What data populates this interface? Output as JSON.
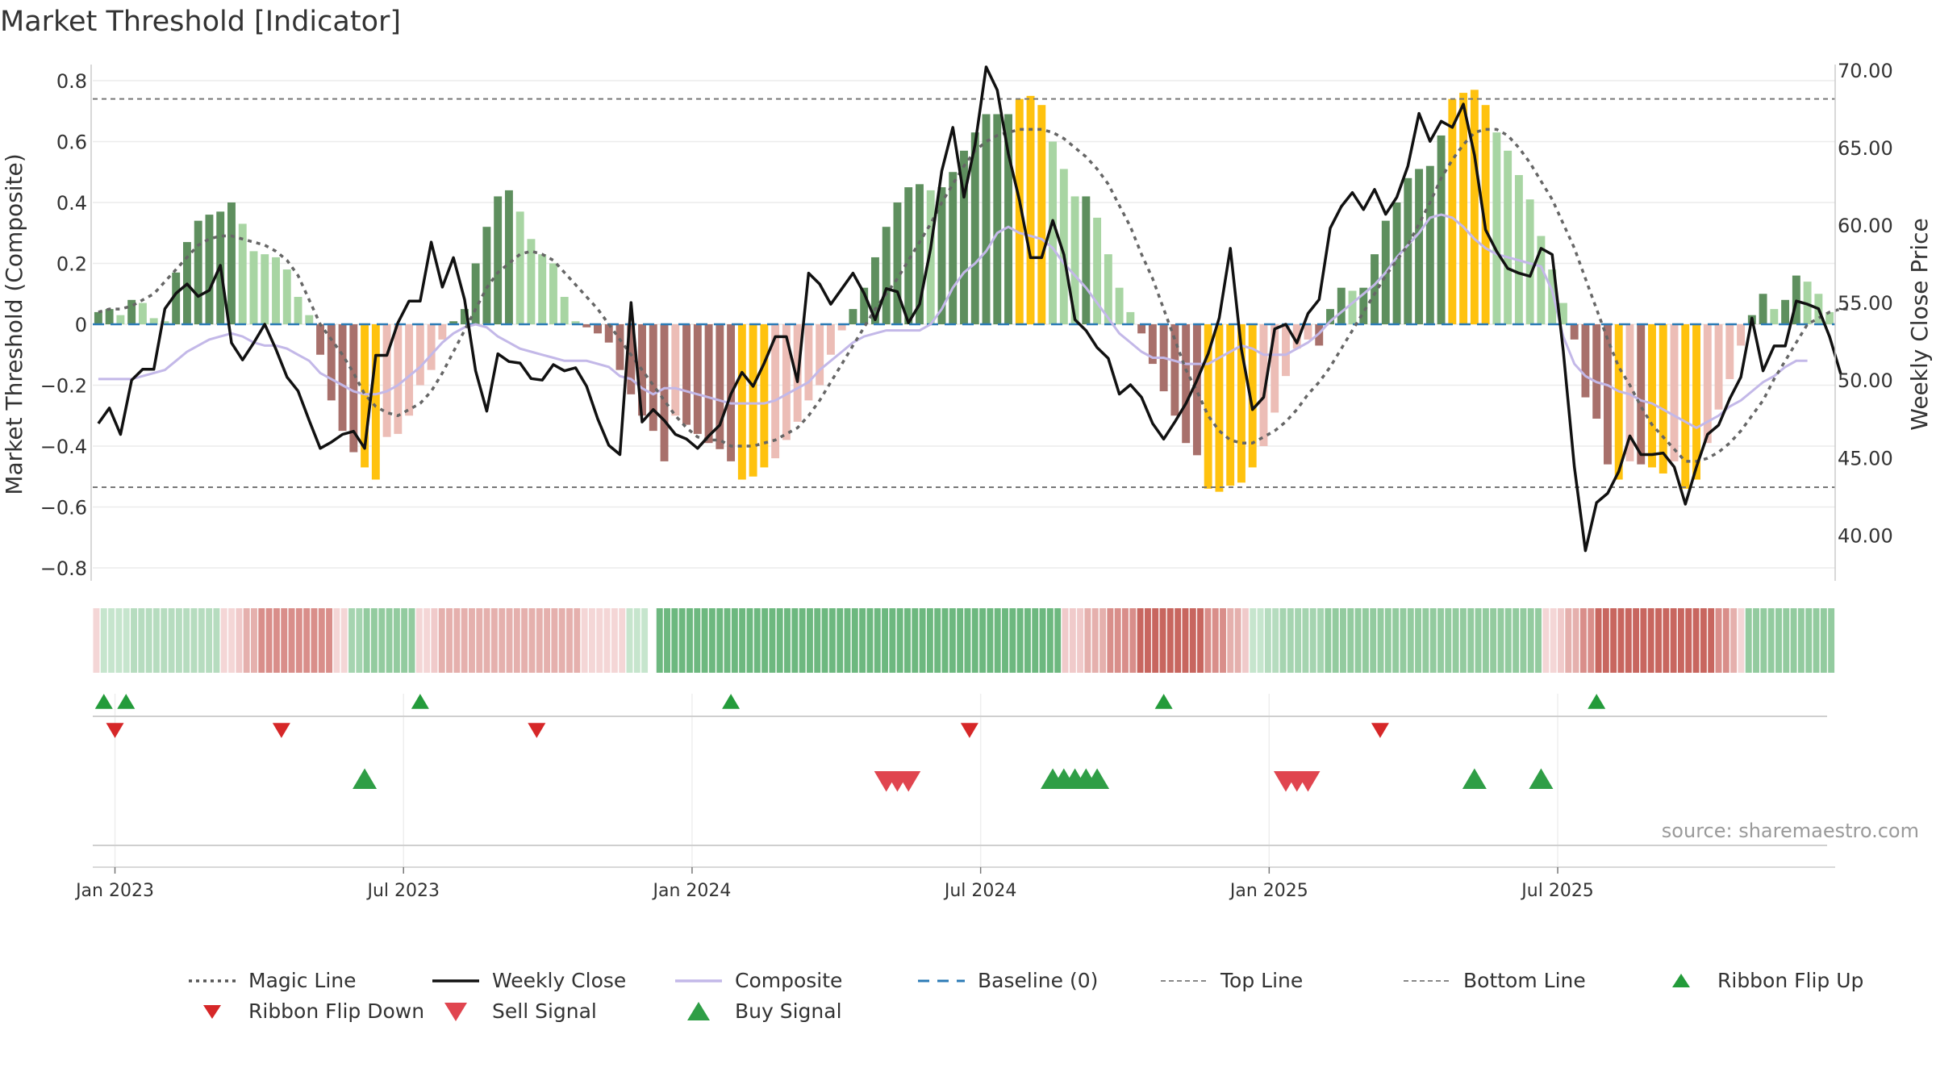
{
  "chart_data": {
    "type": "bar",
    "title": "Market Threshold [Indicator]",
    "ylabel": "Market Threshold (Composite)",
    "y2label": "Weekly Close Price",
    "ylim": [
      -0.85,
      0.85
    ],
    "y2lim": [
      36.2,
      71.0
    ],
    "y_ticks": [
      0.8,
      0.6,
      0.4,
      0.2,
      0,
      -0.2,
      -0.4,
      -0.6,
      -0.8
    ],
    "y_tick_labels": [
      "0.8",
      "0.6",
      "0.4",
      "0.2",
      "0",
      "−0.2",
      "−0.4",
      "−0.6",
      "−0.8"
    ],
    "y2_ticks": [
      70,
      65,
      60,
      55,
      50,
      45,
      40
    ],
    "y2_tick_labels": [
      "70.00",
      "65.00",
      "60.00",
      "55.00",
      "50.00",
      "45.00",
      "40.00"
    ],
    "x_ticks": [
      {
        "label": "Jan 2023",
        "week": 1.5
      },
      {
        "label": "Jul 2023",
        "week": 27.5
      },
      {
        "label": "Jan 2024",
        "week": 53.5
      },
      {
        "label": "Jul 2024",
        "week": 79.5
      },
      {
        "label": "Jan 2025",
        "week": 105.5
      },
      {
        "label": "Jul 2025",
        "week": 131.5
      }
    ],
    "top_line": 0.74,
    "bottom_line": -0.535,
    "baseline": 0,
    "composite_bars": [
      0.04,
      0.05,
      0.03,
      0.08,
      0.07,
      0.02,
      0.01,
      0.17,
      0.27,
      0.34,
      0.36,
      0.37,
      0.4,
      0.33,
      0.24,
      0.23,
      0.22,
      0.18,
      0.09,
      0.03,
      -0.1,
      -0.25,
      -0.35,
      -0.42,
      -0.47,
      -0.51,
      -0.37,
      -0.36,
      -0.3,
      -0.2,
      -0.15,
      -0.05,
      0.01,
      0.05,
      0.2,
      0.32,
      0.42,
      0.44,
      0.37,
      0.28,
      0.23,
      0.2,
      0.09,
      0.01,
      -0.01,
      -0.03,
      -0.06,
      -0.15,
      -0.23,
      -0.3,
      -0.35,
      -0.45,
      -0.3,
      -0.33,
      -0.36,
      -0.39,
      -0.41,
      -0.45,
      -0.51,
      -0.5,
      -0.47,
      -0.44,
      -0.38,
      -0.32,
      -0.25,
      -0.2,
      -0.1,
      -0.02,
      0.05,
      0.12,
      0.22,
      0.32,
      0.4,
      0.45,
      0.46,
      0.44,
      0.45,
      0.5,
      0.57,
      0.63,
      0.69,
      0.69,
      0.69,
      0.74,
      0.75,
      0.72,
      0.6,
      0.51,
      0.42,
      0.42,
      0.35,
      0.23,
      0.12,
      0.04,
      -0.03,
      -0.13,
      -0.22,
      -0.3,
      -0.39,
      -0.43,
      -0.54,
      -0.55,
      -0.53,
      -0.52,
      -0.47,
      -0.4,
      -0.29,
      -0.17,
      -0.08,
      -0.05,
      -0.07,
      0.05,
      0.12,
      0.11,
      0.12,
      0.23,
      0.34,
      0.4,
      0.48,
      0.51,
      0.52,
      0.62,
      0.74,
      0.76,
      0.77,
      0.72,
      0.63,
      0.57,
      0.49,
      0.41,
      0.29,
      0.18,
      0.07,
      -0.05,
      -0.24,
      -0.31,
      -0.46,
      -0.51,
      -0.45,
      -0.46,
      -0.47,
      -0.49,
      -0.45,
      -0.54,
      -0.51,
      -0.39,
      -0.28,
      -0.18,
      -0.07,
      0.03,
      0.1,
      0.05,
      0.08,
      0.16,
      0.14,
      0.1,
      0.04
    ],
    "weekly_close": [
      47.2,
      48.2,
      46.5,
      50.0,
      50.7,
      50.7,
      54.6,
      55.6,
      56.2,
      55.4,
      55.8,
      57.4,
      52.4,
      51.3,
      52.4,
      53.6,
      52.0,
      50.2,
      49.3,
      47.4,
      45.6,
      46.0,
      46.5,
      46.7,
      45.6,
      51.6,
      51.6,
      53.7,
      55.1,
      55.1,
      58.9,
      56.0,
      57.9,
      55.2,
      50.6,
      48.0,
      51.7,
      51.2,
      51.1,
      50.1,
      50.0,
      51.0,
      50.6,
      50.8,
      49.6,
      47.5,
      45.8,
      45.2,
      55.0,
      47.3,
      48.1,
      47.4,
      46.5,
      46.2,
      45.6,
      46.4,
      47.1,
      49.1,
      50.5,
      49.6,
      51.1,
      52.8,
      52.8,
      49.9,
      56.9,
      56.2,
      54.9,
      55.9,
      56.9,
      55.6,
      53.9,
      55.9,
      55.7,
      53.7,
      54.9,
      58.5,
      63.5,
      66.3,
      61.8,
      65.2,
      70.2,
      68.7,
      64.6,
      61.6,
      57.9,
      57.9,
      60.3,
      58.1,
      53.9,
      53.2,
      52.1,
      51.4,
      49.1,
      49.7,
      48.9,
      47.2,
      46.2,
      47.3,
      48.5,
      50.0,
      51.7,
      54.0,
      58.5,
      52.0,
      48.1,
      48.9,
      53.3,
      53.6,
      52.4,
      54.3,
      55.2,
      59.8,
      61.2,
      62.1,
      61.0,
      62.3,
      60.7,
      61.8,
      63.8,
      67.2,
      65.4,
      66.7,
      66.3,
      67.8,
      64.5,
      59.7,
      58.3,
      57.2,
      56.9,
      56.7,
      58.5,
      58.1,
      51.9,
      44.4,
      39.0,
      42.1,
      42.7,
      44.1,
      46.4,
      45.2,
      45.2,
      45.3,
      44.4,
      42.0,
      44.4,
      46.5,
      47.1,
      48.8,
      50.2,
      54.0,
      50.6,
      52.2,
      52.2,
      55.1,
      54.9,
      54.6,
      52.8,
      50.4
    ],
    "magic_line": [
      0.04,
      0.05,
      0.05,
      0.06,
      0.08,
      0.1,
      0.14,
      0.18,
      0.22,
      0.26,
      0.28,
      0.29,
      0.29,
      0.28,
      0.27,
      0.26,
      0.24,
      0.21,
      0.16,
      0.08,
      0.0,
      -0.05,
      -0.1,
      -0.16,
      -0.23,
      -0.27,
      -0.29,
      -0.3,
      -0.28,
      -0.26,
      -0.22,
      -0.16,
      -0.09,
      -0.02,
      0.05,
      0.12,
      0.17,
      0.2,
      0.23,
      0.24,
      0.23,
      0.21,
      0.17,
      0.13,
      0.09,
      0.05,
      0.0,
      -0.05,
      -0.1,
      -0.15,
      -0.2,
      -0.25,
      -0.3,
      -0.34,
      -0.37,
      -0.38,
      -0.38,
      -0.4,
      -0.4,
      -0.4,
      -0.39,
      -0.38,
      -0.36,
      -0.34,
      -0.3,
      -0.25,
      -0.19,
      -0.13,
      -0.07,
      -0.01,
      0.05,
      0.1,
      0.15,
      0.21,
      0.27,
      0.33,
      0.4,
      0.46,
      0.52,
      0.57,
      0.6,
      0.62,
      0.63,
      0.64,
      0.64,
      0.64,
      0.63,
      0.61,
      0.58,
      0.55,
      0.51,
      0.46,
      0.39,
      0.32,
      0.23,
      0.15,
      0.05,
      -0.05,
      -0.15,
      -0.22,
      -0.3,
      -0.35,
      -0.38,
      -0.39,
      -0.39,
      -0.37,
      -0.35,
      -0.32,
      -0.28,
      -0.23,
      -0.19,
      -0.14,
      -0.08,
      -0.02,
      0.04,
      0.1,
      0.16,
      0.21,
      0.26,
      0.33,
      0.4,
      0.48,
      0.54,
      0.59,
      0.63,
      0.64,
      0.64,
      0.62,
      0.58,
      0.53,
      0.47,
      0.41,
      0.33,
      0.25,
      0.15,
      0.05,
      -0.05,
      -0.14,
      -0.2,
      -0.27,
      -0.33,
      -0.37,
      -0.41,
      -0.45,
      -0.45,
      -0.44,
      -0.42,
      -0.39,
      -0.35,
      -0.3,
      -0.25,
      -0.18,
      -0.12,
      -0.06,
      0.0,
      0.02,
      0.04,
      0.05,
      0.05
    ],
    "composite_line": [
      -0.18,
      -0.18,
      -0.18,
      -0.18,
      -0.17,
      -0.16,
      -0.15,
      -0.12,
      -0.09,
      -0.07,
      -0.05,
      -0.04,
      -0.03,
      -0.04,
      -0.06,
      -0.07,
      -0.07,
      -0.08,
      -0.1,
      -0.12,
      -0.16,
      -0.18,
      -0.2,
      -0.22,
      -0.23,
      -0.23,
      -0.22,
      -0.2,
      -0.17,
      -0.14,
      -0.1,
      -0.06,
      -0.03,
      -0.01,
      0.0,
      -0.01,
      -0.04,
      -0.06,
      -0.08,
      -0.09,
      -0.1,
      -0.11,
      -0.12,
      -0.12,
      -0.12,
      -0.13,
      -0.14,
      -0.17,
      -0.18,
      -0.21,
      -0.23,
      -0.21,
      -0.21,
      -0.22,
      -0.23,
      -0.24,
      -0.25,
      -0.26,
      -0.26,
      -0.26,
      -0.26,
      -0.25,
      -0.23,
      -0.21,
      -0.19,
      -0.15,
      -0.12,
      -0.09,
      -0.06,
      -0.04,
      -0.03,
      -0.02,
      -0.02,
      -0.02,
      -0.02,
      0.0,
      0.05,
      0.12,
      0.17,
      0.2,
      0.24,
      0.3,
      0.32,
      0.3,
      0.29,
      0.28,
      0.25,
      0.2,
      0.16,
      0.12,
      0.07,
      0.02,
      -0.03,
      -0.06,
      -0.09,
      -0.11,
      -0.11,
      -0.12,
      -0.13,
      -0.13,
      -0.13,
      -0.11,
      -0.09,
      -0.07,
      -0.08,
      -0.1,
      -0.1,
      -0.1,
      -0.08,
      -0.06,
      -0.03,
      0.01,
      0.04,
      0.07,
      0.1,
      0.13,
      0.17,
      0.22,
      0.26,
      0.3,
      0.35,
      0.36,
      0.35,
      0.32,
      0.28,
      0.25,
      0.23,
      0.22,
      0.21,
      0.2,
      0.19,
      0.11,
      -0.04,
      -0.13,
      -0.17,
      -0.19,
      -0.2,
      -0.22,
      -0.23,
      -0.25,
      -0.26,
      -0.28,
      -0.3,
      -0.32,
      -0.34,
      -0.32,
      -0.3,
      -0.27,
      -0.25,
      -0.22,
      -0.19,
      -0.17,
      -0.14,
      -0.12,
      -0.12
    ],
    "ribbon_colors": [
      "#f4d6d6",
      "#c6e5cd",
      "#c6e5cd",
      "#c6e5cd",
      "#c6e5cd",
      "#b6dcbf",
      "#b6dcbf",
      "#b6dcbf",
      "#b6dcbf",
      "#b6dcbf",
      "#b6dcbf",
      "#b6dcbf",
      "#b6dcbf",
      "#b6dcbf",
      "#b6dcbf",
      "#b6dcbf",
      "#b6dcbf",
      "#f4d6d6",
      "#f4d6d6",
      "#f0caca",
      "#e5b0ad",
      "#e5b0ad",
      "#d98e8a",
      "#d98e8a",
      "#d98e8a",
      "#d98e8a",
      "#d98e8a",
      "#d98e8a",
      "#d98e8a",
      "#d98e8a",
      "#d98e8a",
      "#d98e8a",
      "#f4d6d6",
      "#f4d6d6",
      "#a5d4b0",
      "#a5d4b0",
      "#93cb9f",
      "#93cb9f",
      "#93cb9f",
      "#93cb9f",
      "#93cb9f",
      "#93cb9f",
      "#93cb9f",
      "#f4d6d6",
      "#f4d6d6",
      "#f0caca",
      "#e5b0ad",
      "#e5b0ad",
      "#e5b0ad",
      "#e5b0ad",
      "#e5b0ad",
      "#e5b0ad",
      "#e5b0ad",
      "#e5b0ad",
      "#e5b0ad",
      "#e5b0ad",
      "#e5b0ad",
      "#e5b0ad",
      "#e5b0ad",
      "#e5b0ad",
      "#e5b0ad",
      "#e5b0ad",
      "#e5b0ad",
      "#e5b0ad",
      "#e5b0ad",
      "#f4d6d6",
      "#f4d6d6",
      "#f4d6d6",
      "#f4d6d6",
      "#f4d6d6",
      "#f4d6d6",
      "#c6e5cd",
      "#c6e5cd",
      "#c6e5cd",
      "#ffffff",
      "#6db87f",
      "#6db87f",
      "#6db87f",
      "#6db87f",
      "#6db87f",
      "#6db87f",
      "#6db87f",
      "#6db87f",
      "#6db87f",
      "#6db87f",
      "#6db87f",
      "#6db87f",
      "#6db87f",
      "#6db87f",
      "#6db87f",
      "#6db87f",
      "#6db87f",
      "#6db87f",
      "#6db87f",
      "#6db87f",
      "#6db87f",
      "#6db87f",
      "#6db87f",
      "#6db87f",
      "#6db87f",
      "#6db87f",
      "#6db87f",
      "#6db87f",
      "#6db87f",
      "#6db87f",
      "#6db87f",
      "#6db87f",
      "#6db87f",
      "#6db87f",
      "#6db87f",
      "#6db87f",
      "#6db87f",
      "#6db87f",
      "#6db87f",
      "#6db87f",
      "#6db87f",
      "#6db87f",
      "#6db87f",
      "#6db87f",
      "#6db87f",
      "#6db87f",
      "#6db87f",
      "#6db87f",
      "#6db87f",
      "#6db87f",
      "#6db87f",
      "#6db87f",
      "#6db87f",
      "#6db87f",
      "#f0caca",
      "#f0caca",
      "#f0caca",
      "#e5b0ad",
      "#e5b0ad",
      "#e5b0ad",
      "#d98e8a",
      "#d98e8a",
      "#d98e8a",
      "#d98e8a",
      "#c8665f",
      "#c8665f",
      "#c8665f",
      "#c8665f",
      "#c8665f",
      "#c8665f",
      "#c8665f",
      "#c8665f",
      "#c8665f",
      "#d98e8a",
      "#d98e8a",
      "#d98e8a",
      "#e5b0ad",
      "#e5b0ad",
      "#f0caca",
      "#c6e5cd",
      "#c6e5cd",
      "#b6dcbf",
      "#b6dcbf",
      "#a5d4b0",
      "#a5d4b0",
      "#a5d4b0",
      "#a5d4b0",
      "#a5d4b0",
      "#a5d4b0",
      "#93cb9f",
      "#93cb9f",
      "#93cb9f",
      "#93cb9f",
      "#93cb9f",
      "#93cb9f",
      "#93cb9f",
      "#93cb9f",
      "#93cb9f",
      "#93cb9f",
      "#93cb9f",
      "#93cb9f",
      "#93cb9f",
      "#93cb9f",
      "#93cb9f",
      "#93cb9f",
      "#93cb9f",
      "#93cb9f",
      "#93cb9f",
      "#93cb9f",
      "#93cb9f",
      "#93cb9f",
      "#93cb9f",
      "#93cb9f",
      "#93cb9f",
      "#93cb9f",
      "#93cb9f",
      "#93cb9f",
      "#93cb9f",
      "#f4d6d6",
      "#f4d6d6",
      "#f0caca",
      "#e5b0ad",
      "#e5b0ad",
      "#d98e8a",
      "#d98e8a",
      "#c8665f",
      "#c8665f",
      "#c8665f",
      "#c8665f",
      "#c8665f",
      "#c8665f",
      "#c8665f",
      "#c8665f",
      "#c8665f",
      "#c8665f",
      "#c8665f",
      "#c8665f",
      "#c8665f",
      "#c8665f",
      "#c8665f",
      "#c8665f",
      "#d98e8a",
      "#d98e8a",
      "#e5b0ad",
      "#f4d6d6",
      "#93cb9f",
      "#93cb9f",
      "#93cb9f",
      "#93cb9f",
      "#93cb9f",
      "#93cb9f",
      "#93cb9f",
      "#93cb9f",
      "#93cb9f",
      "#93cb9f",
      "#93cb9f",
      "#93cb9f"
    ],
    "ribbon_flip_up_weeks": [
      0.5,
      2.5,
      29,
      57,
      96,
      135
    ],
    "ribbon_flip_down_weeks": [
      1.5,
      16.5,
      39.5,
      78.5,
      115.5
    ],
    "buy_signal_weeks": [
      24,
      86,
      87,
      88,
      89,
      90,
      124,
      130
    ],
    "sell_signal_weeks": [
      71,
      72,
      73,
      107,
      108,
      109
    ],
    "source_note": "source: sharemaestro.com",
    "legend": [
      {
        "label": "Magic Line",
        "kind": "dotted",
        "color": "#555555"
      },
      {
        "label": "Weekly Close",
        "kind": "solid",
        "color": "#111111"
      },
      {
        "label": "Composite",
        "kind": "solid",
        "color": "#c3b8e8"
      },
      {
        "label": "Baseline (0)",
        "kind": "dashed",
        "color": "#2c7bb6"
      },
      {
        "label": "Top Line",
        "kind": "dashed-thin",
        "color": "#888888"
      },
      {
        "label": "Bottom Line",
        "kind": "dashed-thin",
        "color": "#888888"
      },
      {
        "label": "Ribbon Flip Up",
        "kind": "tri-up",
        "color": "#239b3a"
      },
      {
        "label": "Ribbon Flip Down",
        "kind": "tri-down",
        "color": "#d62728"
      },
      {
        "label": "Sell Signal",
        "kind": "tri-down-big",
        "color": "#e0454f"
      },
      {
        "label": "Buy Signal",
        "kind": "tri-up-big",
        "color": "#2f9e46"
      }
    ],
    "colors": {
      "bar_pos_dark": "#5e8f5e",
      "bar_pos_light": "#a8d5a3",
      "bar_neg_dark": "#a8706b",
      "bar_neg_light": "#ecbdb6",
      "bar_extreme": "#ffc20e"
    }
  }
}
